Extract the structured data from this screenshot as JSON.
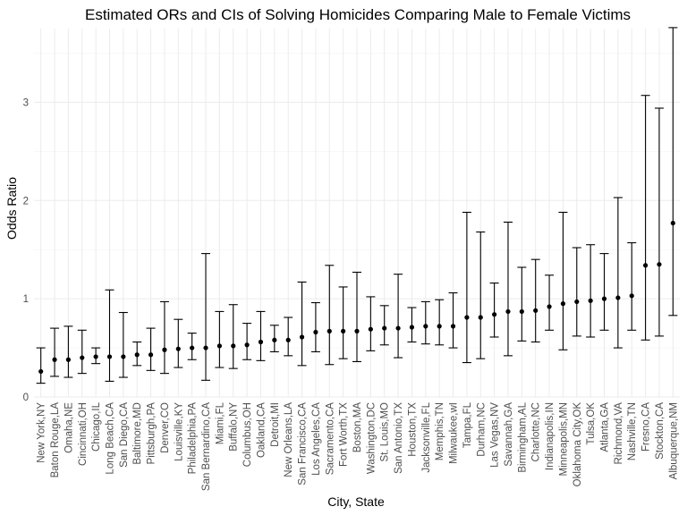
{
  "chart_data": {
    "type": "errorbar",
    "title": "Estimated ORs and CIs of Solving Homicides Comparing Male to Female Victims",
    "xlabel": "City, State",
    "ylabel": "Odds Ratio",
    "ylim": [
      0,
      3.75
    ],
    "yticks": [
      0,
      1,
      2,
      3
    ],
    "grid": true,
    "points": [
      {
        "city": "New York,NY",
        "or": 0.26,
        "lo": 0.14,
        "hi": 0.5
      },
      {
        "city": "Baton Rouge,LA",
        "or": 0.38,
        "lo": 0.21,
        "hi": 0.7
      },
      {
        "city": "Omaha,NE",
        "or": 0.38,
        "lo": 0.2,
        "hi": 0.72
      },
      {
        "city": "Cincinnati,OH",
        "or": 0.4,
        "lo": 0.24,
        "hi": 0.68
      },
      {
        "city": "Chicago,IL",
        "or": 0.41,
        "lo": 0.34,
        "hi": 0.5
      },
      {
        "city": "Long Beach,CA",
        "or": 0.41,
        "lo": 0.16,
        "hi": 1.09
      },
      {
        "city": "San Diego,CA",
        "or": 0.41,
        "lo": 0.2,
        "hi": 0.86
      },
      {
        "city": "Baltimore,MD",
        "or": 0.43,
        "lo": 0.32,
        "hi": 0.56
      },
      {
        "city": "Pittsburgh,PA",
        "or": 0.43,
        "lo": 0.27,
        "hi": 0.7
      },
      {
        "city": "Denver,CO",
        "or": 0.48,
        "lo": 0.24,
        "hi": 0.97
      },
      {
        "city": "Louisville,KY",
        "or": 0.49,
        "lo": 0.3,
        "hi": 0.79
      },
      {
        "city": "Philadelphia,PA",
        "or": 0.5,
        "lo": 0.38,
        "hi": 0.65
      },
      {
        "city": "San Bernardino,CA",
        "or": 0.5,
        "lo": 0.17,
        "hi": 1.46
      },
      {
        "city": "Miami,FL",
        "or": 0.52,
        "lo": 0.3,
        "hi": 0.87
      },
      {
        "city": "Buffalo,NY",
        "or": 0.52,
        "lo": 0.29,
        "hi": 0.94
      },
      {
        "city": "Columbus,OH",
        "or": 0.53,
        "lo": 0.38,
        "hi": 0.75
      },
      {
        "city": "Oakland,CA",
        "or": 0.56,
        "lo": 0.37,
        "hi": 0.87
      },
      {
        "city": "Detroit,MI",
        "or": 0.58,
        "lo": 0.46,
        "hi": 0.73
      },
      {
        "city": "New Orleans,LA",
        "or": 0.58,
        "lo": 0.42,
        "hi": 0.81
      },
      {
        "city": "San Francisco,CA",
        "or": 0.61,
        "lo": 0.32,
        "hi": 1.17
      },
      {
        "city": "Los Angeles,CA",
        "or": 0.66,
        "lo": 0.46,
        "hi": 0.96
      },
      {
        "city": "Sacramento,CA",
        "or": 0.67,
        "lo": 0.33,
        "hi": 1.34
      },
      {
        "city": "Fort Worth,TX",
        "or": 0.67,
        "lo": 0.39,
        "hi": 1.12
      },
      {
        "city": "Boston,MA",
        "or": 0.67,
        "lo": 0.36,
        "hi": 1.27
      },
      {
        "city": "Washington,DC",
        "or": 0.69,
        "lo": 0.47,
        "hi": 1.02
      },
      {
        "city": "St. Louis,MO",
        "or": 0.7,
        "lo": 0.53,
        "hi": 0.93
      },
      {
        "city": "San Antonio,TX",
        "or": 0.7,
        "lo": 0.4,
        "hi": 1.25
      },
      {
        "city": "Houston,TX",
        "or": 0.71,
        "lo": 0.56,
        "hi": 0.91
      },
      {
        "city": "Jacksonville,FL",
        "or": 0.72,
        "lo": 0.54,
        "hi": 0.97
      },
      {
        "city": "Memphis,TN",
        "or": 0.72,
        "lo": 0.53,
        "hi": 0.99
      },
      {
        "city": "Milwaukee,wI",
        "or": 0.72,
        "lo": 0.5,
        "hi": 1.06
      },
      {
        "city": "Tampa,FL",
        "or": 0.81,
        "lo": 0.35,
        "hi": 1.88
      },
      {
        "city": "Durham,NC",
        "or": 0.81,
        "lo": 0.39,
        "hi": 1.68
      },
      {
        "city": "Las Vegas,NV",
        "or": 0.84,
        "lo": 0.61,
        "hi": 1.16
      },
      {
        "city": "Savannah,GA",
        "or": 0.87,
        "lo": 0.42,
        "hi": 1.78
      },
      {
        "city": "Birmingham,AL",
        "or": 0.87,
        "lo": 0.57,
        "hi": 1.32
      },
      {
        "city": "Charlotte,NC",
        "or": 0.88,
        "lo": 0.56,
        "hi": 1.4
      },
      {
        "city": "Indianapolis,IN",
        "or": 0.92,
        "lo": 0.68,
        "hi": 1.24
      },
      {
        "city": "Minneapolis,MN",
        "or": 0.95,
        "lo": 0.48,
        "hi": 1.88
      },
      {
        "city": "Oklahoma City,OK",
        "or": 0.97,
        "lo": 0.62,
        "hi": 1.52
      },
      {
        "city": "Tulsa,OK",
        "or": 0.98,
        "lo": 0.61,
        "hi": 1.55
      },
      {
        "city": "Atlanta,GA",
        "or": 1.0,
        "lo": 0.68,
        "hi": 1.46
      },
      {
        "city": "Richmond,VA",
        "or": 1.01,
        "lo": 0.5,
        "hi": 2.03
      },
      {
        "city": "Nashville,TN",
        "or": 1.03,
        "lo": 0.68,
        "hi": 1.57
      },
      {
        "city": "Fresno,CA",
        "or": 1.34,
        "lo": 0.58,
        "hi": 3.07
      },
      {
        "city": "Stockton,CA",
        "or": 1.35,
        "lo": 0.62,
        "hi": 2.94
      },
      {
        "city": "Albuquerque,NM",
        "or": 1.77,
        "lo": 0.83,
        "hi": 3.76
      }
    ]
  }
}
